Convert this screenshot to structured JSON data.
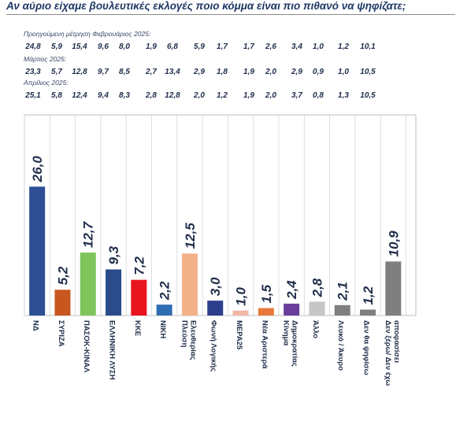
{
  "title": "Αν αύριο είχαμε βουλευτικές εκλογές ποιο κόμμα είναι πιο πιθανό να ψηφίζατε;",
  "previous_measurements": [
    {
      "label": "Προηγούμενη μέτρηση Φεβρουάριος 2025:",
      "values": [
        "24,8",
        "5,9",
        "15,4",
        "9,6",
        "8,0",
        "1,9",
        "6,8",
        "5,9",
        "1,7",
        "1,7",
        "2,6",
        "3,4",
        "1,0",
        "1,2",
        "10,1"
      ]
    },
    {
      "label": "Μάρτιος 2025:",
      "values": [
        "23,3",
        "5,7",
        "12,8",
        "9,7",
        "8,5",
        "2,7",
        "13,4",
        "2,9",
        "1,8",
        "1,9",
        "2,0",
        "2,9",
        "0,9",
        "1,0",
        "10,5"
      ]
    },
    {
      "label": "Απρίλιος 2025:",
      "values": [
        "25,1",
        "5,8",
        "12,4",
        "9,4",
        "8,3",
        "2,8",
        "12,8",
        "2,0",
        "1,2",
        "1,9",
        "2,0",
        "3,7",
        "0,8",
        "1,3",
        "10,5"
      ]
    }
  ],
  "chart_data": {
    "type": "bar",
    "categories": [
      [
        "ΝΔ"
      ],
      [
        "ΣΥΡΙΖΑ"
      ],
      [
        "ΠΑΣΟΚ-ΚΙΝΑΛ"
      ],
      [
        "ΕΛΛΗΝΙΚΗ ΛΥΣΗ"
      ],
      [
        "ΚΚΕ"
      ],
      [
        "ΝΙΚΗ"
      ],
      [
        "Πλεύση",
        "Ελευθερίας"
      ],
      [
        "Φωνή Λογικής"
      ],
      [
        "ΜΕΡΑ25"
      ],
      [
        "Νέα Αριστερά"
      ],
      [
        "Κίνημα",
        "Δημοκρατίας"
      ],
      [
        "Άλλο"
      ],
      [
        "Λευκό / Άκυρο"
      ],
      [
        "Δεν θα ψηφίσω"
      ],
      [
        "Δεν ξέρω/ Δεν έχω",
        "αποφασίσει"
      ]
    ],
    "values": [
      26.0,
      5.2,
      12.7,
      9.3,
      7.2,
      2.2,
      12.5,
      3.0,
      1.0,
      1.5,
      2.4,
      2.8,
      2.1,
      1.2,
      10.9
    ],
    "value_labels": [
      "26,0",
      "5,2",
      "12,7",
      "9,3",
      "7,2",
      "2,2",
      "12,5",
      "3,0",
      "1,0",
      "1,5",
      "2,4",
      "2,8",
      "2,1",
      "1,2",
      "10,9"
    ],
    "colors": [
      "#2e4f94",
      "#c8561f",
      "#7fc55c",
      "#2b4b8c",
      "#e8141e",
      "#2f6db3",
      "#f2b188",
      "#2c3e8c",
      "#f0b7a4",
      "#e8793a",
      "#6a3d9a",
      "#c6c6c6",
      "#7f7f7f",
      "#7f7f7f",
      "#7f7f7f"
    ],
    "ylim": [
      0,
      30
    ],
    "grid": false
  }
}
